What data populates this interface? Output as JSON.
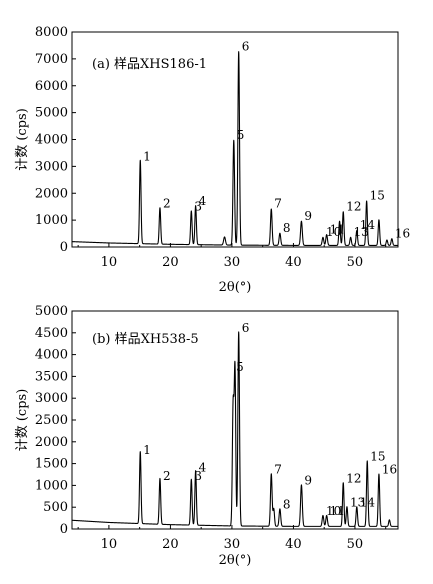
{
  "chart_data": [
    {
      "type": "line",
      "title": "(a) 样品XHS186-1",
      "xlabel": "2θ(°)",
      "ylabel": "计数 (cps)",
      "xlim": [
        4,
        57
      ],
      "ylim": [
        0,
        8000
      ],
      "xticks": [
        "10",
        "20",
        "30",
        "40",
        "50"
      ],
      "xtick_values": [
        10,
        20,
        30,
        40,
        50
      ],
      "yticks": [
        "0",
        "1000",
        "2000",
        "3000",
        "4000",
        "5000",
        "6000",
        "7000",
        "8000"
      ],
      "ytick_values": [
        0,
        1000,
        2000,
        3000,
        4000,
        5000,
        6000,
        7000,
        8000
      ],
      "series": [
        {
          "baseline": [
            [
              4,
              200
            ],
            [
              10,
              150
            ],
            [
              20,
              100
            ],
            [
              30,
              70
            ],
            [
              40,
              60
            ],
            [
              50,
              60
            ],
            [
              57,
              60
            ]
          ],
          "peaks": [
            {
              "x": 15.1,
              "y": 3100,
              "w": 0.12
            },
            {
              "x": 18.3,
              "y": 1350,
              "w": 0.12
            },
            {
              "x": 23.4,
              "y": 1250,
              "w": 0.12
            },
            {
              "x": 24.1,
              "y": 1450,
              "w": 0.12
            },
            {
              "x": 28.8,
              "y": 300,
              "w": 0.15
            },
            {
              "x": 30.3,
              "y": 3900,
              "w": 0.13
            },
            {
              "x": 31.1,
              "y": 7200,
              "w": 0.13
            },
            {
              "x": 36.4,
              "y": 1350,
              "w": 0.13
            },
            {
              "x": 37.8,
              "y": 450,
              "w": 0.13
            },
            {
              "x": 41.3,
              "y": 900,
              "w": 0.14
            },
            {
              "x": 44.8,
              "y": 300,
              "w": 0.13
            },
            {
              "x": 45.4,
              "y": 400,
              "w": 0.13
            },
            {
              "x": 47.5,
              "y": 900,
              "w": 0.12
            },
            {
              "x": 48.1,
              "y": 1250,
              "w": 0.12
            },
            {
              "x": 49.3,
              "y": 300,
              "w": 0.12
            },
            {
              "x": 50.3,
              "y": 550,
              "w": 0.12
            },
            {
              "x": 51.9,
              "y": 1650,
              "w": 0.12
            },
            {
              "x": 53.9,
              "y": 950,
              "w": 0.12
            },
            {
              "x": 55.2,
              "y": 200,
              "w": 0.12
            },
            {
              "x": 56.0,
              "y": 250,
              "w": 0.12
            }
          ]
        }
      ],
      "annotations": [
        {
          "text": "1",
          "x": 15.1,
          "y": 3100
        },
        {
          "text": "2",
          "x": 18.3,
          "y": 1350
        },
        {
          "text": "3",
          "x": 23.4,
          "y": 1250
        },
        {
          "text": "4",
          "x": 24.1,
          "y": 1450
        },
        {
          "text": "5",
          "x": 30.3,
          "y": 3900
        },
        {
          "text": "6",
          "x": 31.1,
          "y": 7200
        },
        {
          "text": "7",
          "x": 36.4,
          "y": 1350
        },
        {
          "text": "8",
          "x": 37.8,
          "y": 450
        },
        {
          "text": "9",
          "x": 41.3,
          "y": 900
        },
        {
          "text": "10",
          "x": 44.8,
          "y": 300
        },
        {
          "text": "11",
          "x": 45.4,
          "y": 400
        },
        {
          "text": "12",
          "x": 48.1,
          "y": 1250
        },
        {
          "text": "13",
          "x": 49.3,
          "y": 300
        },
        {
          "text": "14",
          "x": 50.3,
          "y": 550
        },
        {
          "text": "15",
          "x": 51.9,
          "y": 1650
        },
        {
          "text": "16",
          "x": 56.0,
          "y": 250
        }
      ]
    },
    {
      "type": "line",
      "title": "(b) 样品XH538-5",
      "xlabel": "2θ(°)",
      "ylabel": "计数 (cps)",
      "xlim": [
        4,
        57
      ],
      "ylim": [
        0,
        5000
      ],
      "xticks": [
        "10",
        "20",
        "30",
        "40",
        "50"
      ],
      "xtick_values": [
        10,
        20,
        30,
        40,
        50
      ],
      "yticks": [
        "0",
        "500",
        "1000",
        "1500",
        "2000",
        "2500",
        "3000",
        "3500",
        "4000",
        "4500",
        "5000"
      ],
      "ytick_values": [
        0,
        500,
        1000,
        1500,
        2000,
        2500,
        3000,
        3500,
        4000,
        4500,
        5000
      ],
      "series": [
        {
          "baseline": [
            [
              4,
              200
            ],
            [
              10,
              150
            ],
            [
              20,
              100
            ],
            [
              30,
              70
            ],
            [
              40,
              60
            ],
            [
              50,
              60
            ],
            [
              57,
              60
            ]
          ],
          "peaks": [
            {
              "x": 15.1,
              "y": 1650,
              "w": 0.12
            },
            {
              "x": 18.3,
              "y": 1050,
              "w": 0.12
            },
            {
              "x": 23.4,
              "y": 1050,
              "w": 0.12
            },
            {
              "x": 24.1,
              "y": 1250,
              "w": 0.12
            },
            {
              "x": 30.2,
              "y": 2800,
              "w": 0.13
            },
            {
              "x": 30.5,
              "y": 3550,
              "w": 0.12
            },
            {
              "x": 31.1,
              "y": 4450,
              "w": 0.13
            },
            {
              "x": 36.4,
              "y": 1200,
              "w": 0.13
            },
            {
              "x": 36.8,
              "y": 400,
              "w": 0.12
            },
            {
              "x": 37.8,
              "y": 400,
              "w": 0.13
            },
            {
              "x": 41.3,
              "y": 950,
              "w": 0.14
            },
            {
              "x": 44.8,
              "y": 250,
              "w": 0.13
            },
            {
              "x": 45.4,
              "y": 250,
              "w": 0.13
            },
            {
              "x": 48.1,
              "y": 1000,
              "w": 0.12
            },
            {
              "x": 48.7,
              "y": 450,
              "w": 0.12
            },
            {
              "x": 50.3,
              "y": 450,
              "w": 0.12
            },
            {
              "x": 52.0,
              "y": 1500,
              "w": 0.12
            },
            {
              "x": 53.9,
              "y": 1200,
              "w": 0.12
            },
            {
              "x": 55.6,
              "y": 150,
              "w": 0.12
            }
          ]
        }
      ],
      "annotations": [
        {
          "text": "1",
          "x": 15.1,
          "y": 1650
        },
        {
          "text": "2",
          "x": 18.3,
          "y": 1050
        },
        {
          "text": "3",
          "x": 23.4,
          "y": 1050
        },
        {
          "text": "4",
          "x": 24.1,
          "y": 1250
        },
        {
          "text": "5",
          "x": 30.2,
          "y": 3550
        },
        {
          "text": "6",
          "x": 31.1,
          "y": 4450
        },
        {
          "text": "7",
          "x": 36.4,
          "y": 1200
        },
        {
          "text": "8",
          "x": 37.8,
          "y": 400
        },
        {
          "text": "9",
          "x": 41.3,
          "y": 950
        },
        {
          "text": "10",
          "x": 44.8,
          "y": 250
        },
        {
          "text": "11",
          "x": 45.4,
          "y": 250
        },
        {
          "text": "12",
          "x": 48.1,
          "y": 1000
        },
        {
          "text": "13",
          "x": 48.7,
          "y": 450
        },
        {
          "text": "14",
          "x": 50.3,
          "y": 450
        },
        {
          "text": "15",
          "x": 52.0,
          "y": 1500
        },
        {
          "text": "16",
          "x": 53.9,
          "y": 1200
        }
      ]
    }
  ]
}
